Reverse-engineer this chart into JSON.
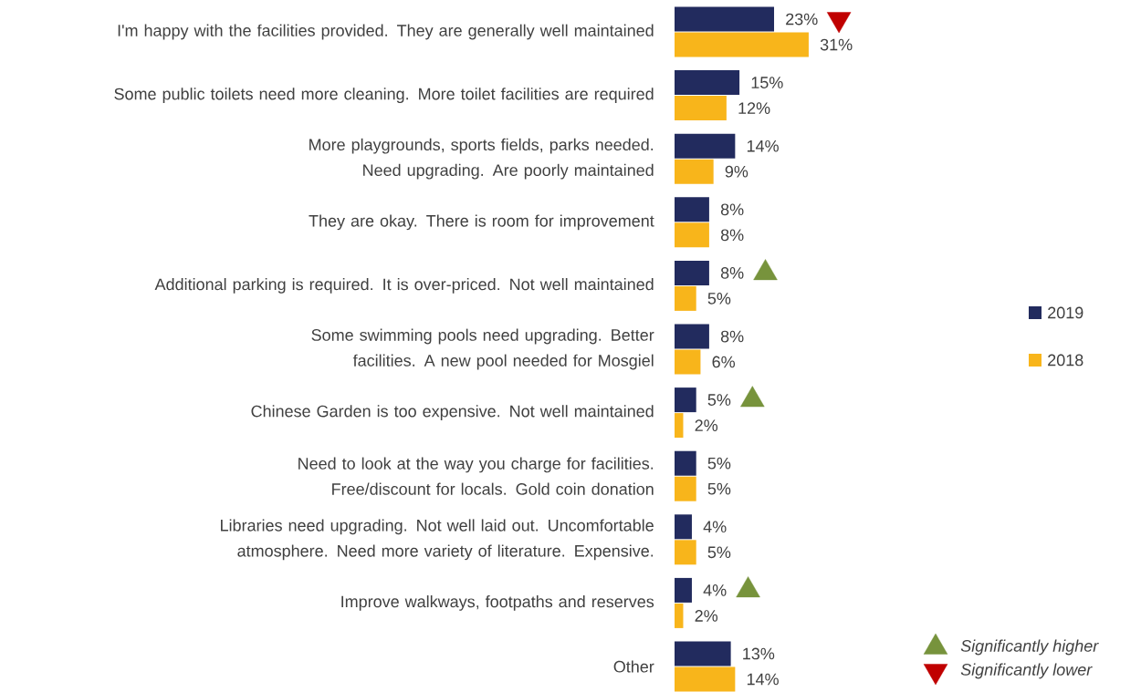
{
  "chart_data": {
    "type": "bar",
    "orientation": "horizontal",
    "legend": "right",
    "categories": [
      "I'm happy with the facilities provided. They are generally well maintained",
      "Some public toilets need more cleaning. More toilet facilities are required",
      "More playgrounds, sports fields, parks needed. Need upgrading. Are poorly maintained",
      "They are okay. There is room for improvement",
      "Additional parking is required. It is over-priced. Not well maintained",
      "Some swimming pools need upgrading. Better facilities. A new pool needed for Mosgiel",
      "Chinese Garden is too expensive. Not well maintained",
      "Need to look at the way you charge for facilities. Free/discount for locals. Gold coin donation",
      "Libraries need upgrading. Not well laid out. Uncomfortable atmosphere. Need more variety of literature. Expensive.",
      "Improve walkways, footpaths and reserves",
      "Other"
    ],
    "series": [
      {
        "name": "2019",
        "color": "#222b5e",
        "values": [
          23,
          15,
          14,
          8,
          8,
          8,
          5,
          5,
          4,
          4,
          13
        ],
        "value_labels": [
          "23%",
          "15%",
          "14%",
          "8%",
          "8%",
          "8%",
          "5%",
          "5%",
          "4%",
          "4%",
          "13%"
        ]
      },
      {
        "name": "2018",
        "color": "#f8b51b",
        "values": [
          31,
          12,
          9,
          8,
          5,
          6,
          2,
          5,
          5,
          2,
          14
        ],
        "value_labels": [
          "31%",
          "12%",
          "9%",
          "8%",
          "5%",
          "6%",
          "2%",
          "5%",
          "5%",
          "2%",
          "14%"
        ]
      },
      {
        "name": "Significantly higher",
        "type": "scatter",
        "marker": "triangle",
        "color": "#77933c",
        "values": [
          null,
          null,
          null,
          null,
          21,
          null,
          18,
          null,
          null,
          17,
          null
        ]
      },
      {
        "name": "Significantly lower",
        "type": "scatter",
        "marker": "triangle",
        "color": "#c00000",
        "values": [
          38,
          null,
          null,
          null,
          null,
          null,
          null,
          null,
          null,
          null,
          null
        ]
      }
    ]
  }
}
